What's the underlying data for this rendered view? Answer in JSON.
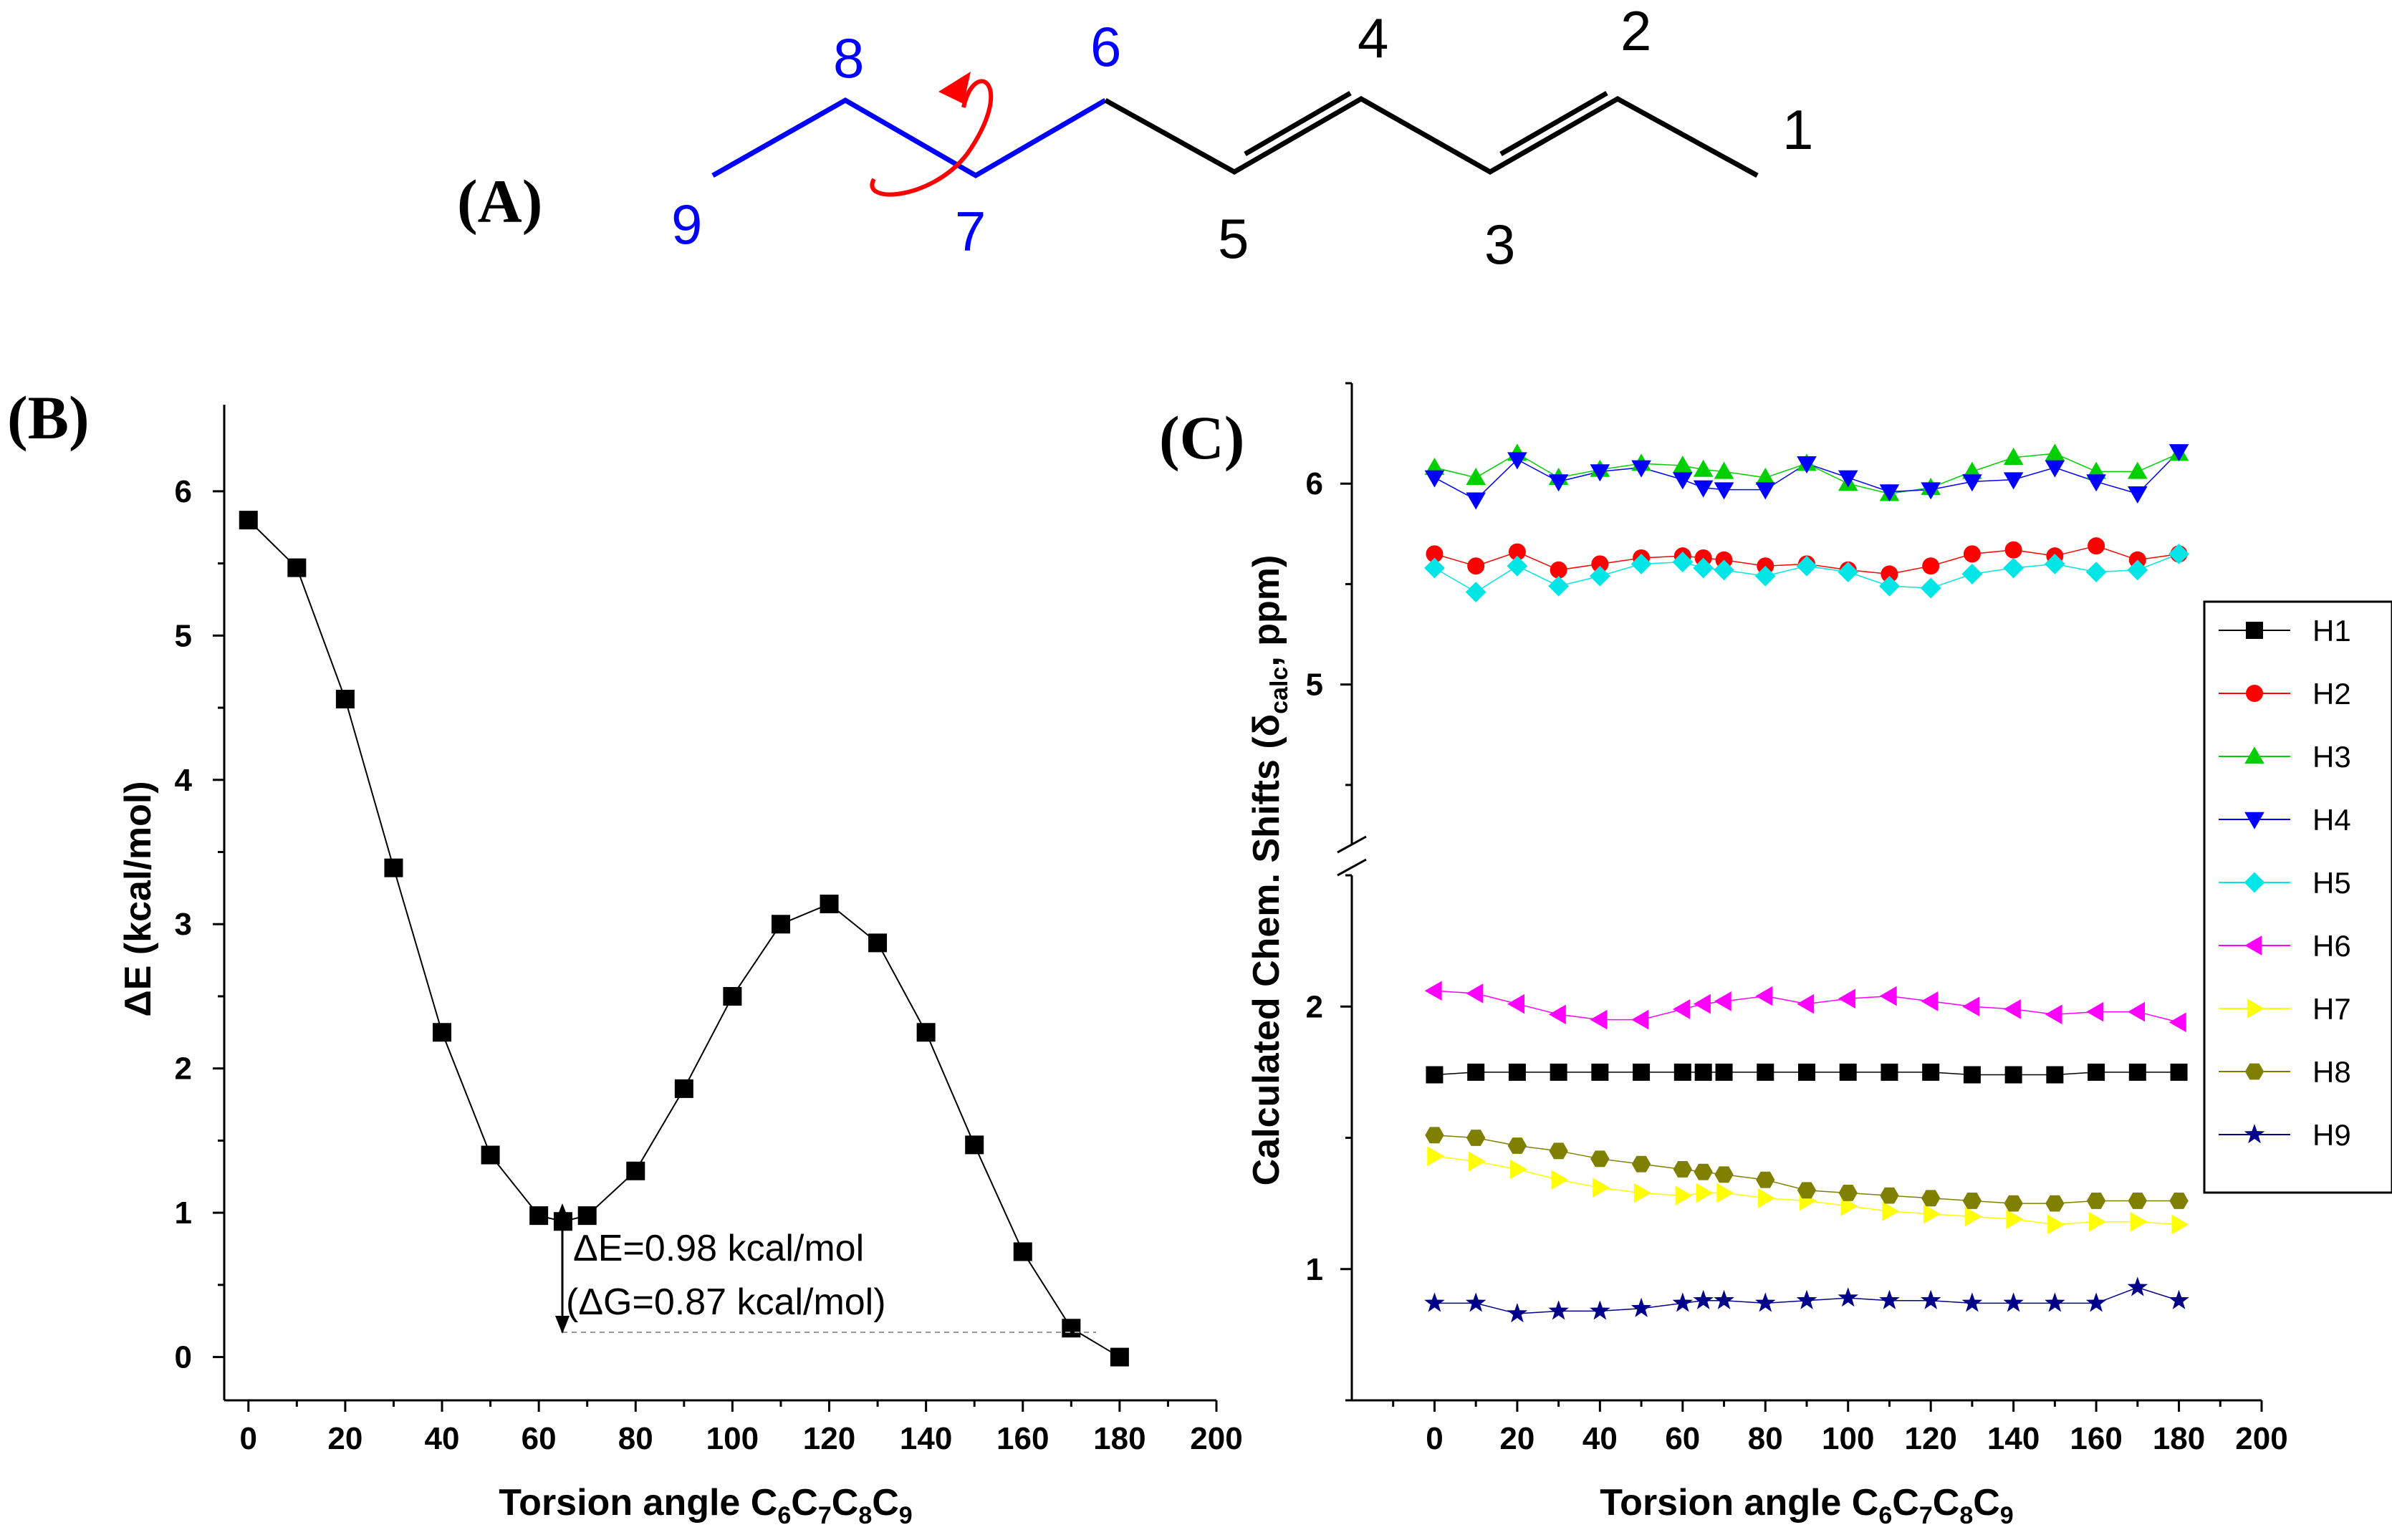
{
  "panel_labels": {
    "a": "(A)",
    "b": "(B)",
    "c": "(C)"
  },
  "molecule": {
    "atom_numbers": [
      "1",
      "2",
      "3",
      "4",
      "5",
      "6",
      "7",
      "8",
      "9"
    ],
    "rotated_atoms_color": "#0000ff",
    "fixed_atoms_color": "#000000",
    "rotation_arrow_color": "#ff0000"
  },
  "chart_data": [
    {
      "type": "line",
      "id": "B",
      "title": "",
      "xlabel": {
        "main": "Torsion angle C",
        "subs": [
          "6",
          "7",
          "8",
          "9"
        ]
      },
      "ylabel": "ΔE (kcal/mol)",
      "xlim": [
        -5,
        200
      ],
      "ylim": [
        -0.3,
        6.6
      ],
      "xticks": [
        0,
        20,
        40,
        60,
        80,
        100,
        120,
        140,
        160,
        180,
        200
      ],
      "yticks": [
        0,
        1,
        2,
        3,
        4,
        5,
        6
      ],
      "series": [
        {
          "name": "ΔE",
          "color": "#000000",
          "marker": "square",
          "x": [
            0,
            10,
            20,
            30,
            40,
            50,
            60,
            65,
            70,
            80,
            90,
            100,
            110,
            120,
            130,
            140,
            150,
            160,
            170,
            180
          ],
          "y": [
            5.8,
            5.47,
            4.56,
            3.39,
            2.25,
            1.4,
            0.98,
            0.94,
            0.98,
            1.29,
            1.86,
            2.5,
            3.0,
            3.14,
            2.87,
            2.25,
            1.47,
            0.73,
            0.2,
            0.0
          ]
        }
      ],
      "annotations": [
        "ΔE=0.98 kcal/mol",
        "(ΔG=0.87 kcal/mol)"
      ]
    },
    {
      "type": "scatter",
      "id": "C",
      "title": "",
      "xlabel": {
        "main": "Torsion angle C",
        "subs": [
          "6",
          "7",
          "8",
          "9"
        ]
      },
      "ylabel": {
        "main": "Calculated Chem. Shifts (δ",
        "sub": "calc",
        "end": ", ppm)"
      },
      "xlim": [
        -20,
        200
      ],
      "ylim_broken": {
        "lower": [
          0.5,
          2.5
        ],
        "upper": [
          4.2,
          6.5
        ]
      },
      "xticks": [
        0,
        20,
        40,
        60,
        80,
        100,
        120,
        140,
        160,
        180,
        200
      ],
      "yticks_lower": [
        1,
        2
      ],
      "yticks_upper": [
        5,
        6
      ],
      "x": [
        0,
        10,
        20,
        30,
        40,
        50,
        60,
        65,
        70,
        80,
        90,
        100,
        110,
        120,
        130,
        140,
        150,
        160,
        170,
        180
      ],
      "series": [
        {
          "name": "H1",
          "color": "#000000",
          "marker": "square",
          "values": [
            1.74,
            1.75,
            1.75,
            1.75,
            1.75,
            1.75,
            1.75,
            1.75,
            1.75,
            1.75,
            1.75,
            1.75,
            1.75,
            1.75,
            1.74,
            1.74,
            1.74,
            1.75,
            1.75,
            1.75
          ]
        },
        {
          "name": "H2",
          "color": "#ff0000",
          "marker": "circle",
          "values": [
            5.65,
            5.59,
            5.66,
            5.57,
            5.6,
            5.63,
            5.64,
            5.63,
            5.62,
            5.59,
            5.6,
            5.57,
            5.55,
            5.59,
            5.65,
            5.67,
            5.64,
            5.69,
            5.62,
            5.65
          ]
        },
        {
          "name": "H3",
          "color": "#00d000",
          "marker": "triangle-up",
          "values": [
            6.08,
            6.03,
            6.15,
            6.03,
            6.07,
            6.1,
            6.09,
            6.07,
            6.06,
            6.03,
            6.1,
            6.0,
            5.95,
            5.98,
            6.06,
            6.13,
            6.15,
            6.06,
            6.06,
            6.15
          ]
        },
        {
          "name": "H4",
          "color": "#0000ff",
          "marker": "triangle-down",
          "values": [
            6.03,
            5.92,
            6.12,
            6.01,
            6.06,
            6.08,
            6.02,
            5.98,
            5.97,
            5.97,
            6.1,
            6.03,
            5.96,
            5.97,
            6.01,
            6.02,
            6.08,
            6.01,
            5.95,
            6.16
          ]
        },
        {
          "name": "H5",
          "color": "#00e5e5",
          "marker": "diamond",
          "values": [
            5.58,
            5.46,
            5.59,
            5.49,
            5.54,
            5.6,
            5.61,
            5.58,
            5.57,
            5.54,
            5.59,
            5.56,
            5.49,
            5.48,
            5.55,
            5.58,
            5.6,
            5.56,
            5.57,
            5.65
          ]
        },
        {
          "name": "H6",
          "color": "#ff00ff",
          "marker": "triangle-left",
          "values": [
            2.06,
            2.05,
            2.01,
            1.97,
            1.95,
            1.95,
            1.99,
            2.01,
            2.02,
            2.04,
            2.01,
            2.03,
            2.04,
            2.02,
            2.0,
            1.99,
            1.97,
            1.98,
            1.98,
            1.94
          ]
        },
        {
          "name": "H7",
          "color": "#ffff00",
          "marker": "triangle-right",
          "values": [
            1.43,
            1.41,
            1.38,
            1.34,
            1.31,
            1.29,
            1.28,
            1.29,
            1.29,
            1.27,
            1.26,
            1.24,
            1.22,
            1.21,
            1.2,
            1.19,
            1.17,
            1.18,
            1.18,
            1.17
          ]
        },
        {
          "name": "H8",
          "color": "#808000",
          "marker": "hexagon",
          "values": [
            1.51,
            1.5,
            1.47,
            1.45,
            1.42,
            1.4,
            1.38,
            1.37,
            1.36,
            1.34,
            1.3,
            1.29,
            1.28,
            1.27,
            1.26,
            1.25,
            1.25,
            1.26,
            1.26,
            1.26
          ]
        },
        {
          "name": "H9",
          "color": "#00008b",
          "marker": "star",
          "values": [
            0.87,
            0.87,
            0.83,
            0.84,
            0.84,
            0.85,
            0.87,
            0.88,
            0.88,
            0.87,
            0.88,
            0.89,
            0.88,
            0.88,
            0.87,
            0.87,
            0.87,
            0.87,
            0.93,
            0.88
          ]
        }
      ]
    }
  ]
}
